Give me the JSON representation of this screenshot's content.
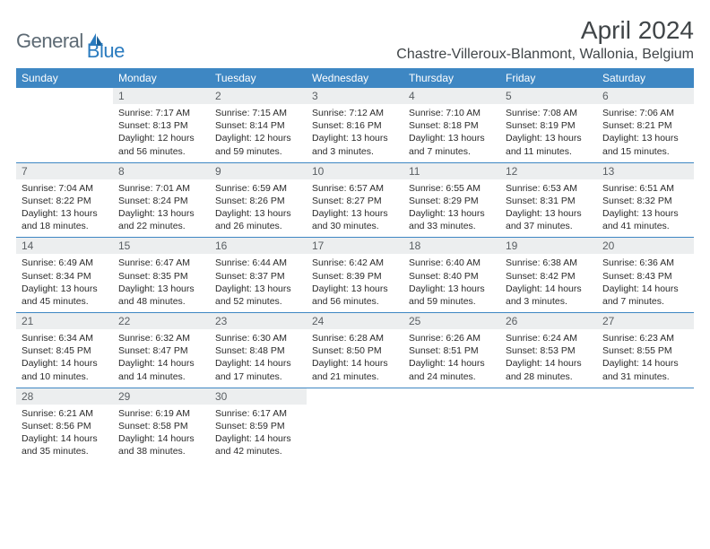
{
  "logo": {
    "text1": "General",
    "text2": "Blue"
  },
  "title": "April 2024",
  "location": "Chastre-Villeroux-Blanmont, Wallonia, Belgium",
  "colors": {
    "header_bg": "#3e87c3",
    "header_fg": "#ffffff",
    "daynum_bg": "#eceeef",
    "daynum_fg": "#5a5f63",
    "text": "#2b2b2b",
    "rule": "#3e87c3",
    "logo_gray": "#5d6a74",
    "logo_blue": "#2a7bbf"
  },
  "weekdays": [
    "Sunday",
    "Monday",
    "Tuesday",
    "Wednesday",
    "Thursday",
    "Friday",
    "Saturday"
  ],
  "grid": [
    [
      {
        "n": "",
        "sr": "",
        "ss": "",
        "dl": ""
      },
      {
        "n": "1",
        "sr": "Sunrise: 7:17 AM",
        "ss": "Sunset: 8:13 PM",
        "dl": "Daylight: 12 hours and 56 minutes."
      },
      {
        "n": "2",
        "sr": "Sunrise: 7:15 AM",
        "ss": "Sunset: 8:14 PM",
        "dl": "Daylight: 12 hours and 59 minutes."
      },
      {
        "n": "3",
        "sr": "Sunrise: 7:12 AM",
        "ss": "Sunset: 8:16 PM",
        "dl": "Daylight: 13 hours and 3 minutes."
      },
      {
        "n": "4",
        "sr": "Sunrise: 7:10 AM",
        "ss": "Sunset: 8:18 PM",
        "dl": "Daylight: 13 hours and 7 minutes."
      },
      {
        "n": "5",
        "sr": "Sunrise: 7:08 AM",
        "ss": "Sunset: 8:19 PM",
        "dl": "Daylight: 13 hours and 11 minutes."
      },
      {
        "n": "6",
        "sr": "Sunrise: 7:06 AM",
        "ss": "Sunset: 8:21 PM",
        "dl": "Daylight: 13 hours and 15 minutes."
      }
    ],
    [
      {
        "n": "7",
        "sr": "Sunrise: 7:04 AM",
        "ss": "Sunset: 8:22 PM",
        "dl": "Daylight: 13 hours and 18 minutes."
      },
      {
        "n": "8",
        "sr": "Sunrise: 7:01 AM",
        "ss": "Sunset: 8:24 PM",
        "dl": "Daylight: 13 hours and 22 minutes."
      },
      {
        "n": "9",
        "sr": "Sunrise: 6:59 AM",
        "ss": "Sunset: 8:26 PM",
        "dl": "Daylight: 13 hours and 26 minutes."
      },
      {
        "n": "10",
        "sr": "Sunrise: 6:57 AM",
        "ss": "Sunset: 8:27 PM",
        "dl": "Daylight: 13 hours and 30 minutes."
      },
      {
        "n": "11",
        "sr": "Sunrise: 6:55 AM",
        "ss": "Sunset: 8:29 PM",
        "dl": "Daylight: 13 hours and 33 minutes."
      },
      {
        "n": "12",
        "sr": "Sunrise: 6:53 AM",
        "ss": "Sunset: 8:31 PM",
        "dl": "Daylight: 13 hours and 37 minutes."
      },
      {
        "n": "13",
        "sr": "Sunrise: 6:51 AM",
        "ss": "Sunset: 8:32 PM",
        "dl": "Daylight: 13 hours and 41 minutes."
      }
    ],
    [
      {
        "n": "14",
        "sr": "Sunrise: 6:49 AM",
        "ss": "Sunset: 8:34 PM",
        "dl": "Daylight: 13 hours and 45 minutes."
      },
      {
        "n": "15",
        "sr": "Sunrise: 6:47 AM",
        "ss": "Sunset: 8:35 PM",
        "dl": "Daylight: 13 hours and 48 minutes."
      },
      {
        "n": "16",
        "sr": "Sunrise: 6:44 AM",
        "ss": "Sunset: 8:37 PM",
        "dl": "Daylight: 13 hours and 52 minutes."
      },
      {
        "n": "17",
        "sr": "Sunrise: 6:42 AM",
        "ss": "Sunset: 8:39 PM",
        "dl": "Daylight: 13 hours and 56 minutes."
      },
      {
        "n": "18",
        "sr": "Sunrise: 6:40 AM",
        "ss": "Sunset: 8:40 PM",
        "dl": "Daylight: 13 hours and 59 minutes."
      },
      {
        "n": "19",
        "sr": "Sunrise: 6:38 AM",
        "ss": "Sunset: 8:42 PM",
        "dl": "Daylight: 14 hours and 3 minutes."
      },
      {
        "n": "20",
        "sr": "Sunrise: 6:36 AM",
        "ss": "Sunset: 8:43 PM",
        "dl": "Daylight: 14 hours and 7 minutes."
      }
    ],
    [
      {
        "n": "21",
        "sr": "Sunrise: 6:34 AM",
        "ss": "Sunset: 8:45 PM",
        "dl": "Daylight: 14 hours and 10 minutes."
      },
      {
        "n": "22",
        "sr": "Sunrise: 6:32 AM",
        "ss": "Sunset: 8:47 PM",
        "dl": "Daylight: 14 hours and 14 minutes."
      },
      {
        "n": "23",
        "sr": "Sunrise: 6:30 AM",
        "ss": "Sunset: 8:48 PM",
        "dl": "Daylight: 14 hours and 17 minutes."
      },
      {
        "n": "24",
        "sr": "Sunrise: 6:28 AM",
        "ss": "Sunset: 8:50 PM",
        "dl": "Daylight: 14 hours and 21 minutes."
      },
      {
        "n": "25",
        "sr": "Sunrise: 6:26 AM",
        "ss": "Sunset: 8:51 PM",
        "dl": "Daylight: 14 hours and 24 minutes."
      },
      {
        "n": "26",
        "sr": "Sunrise: 6:24 AM",
        "ss": "Sunset: 8:53 PM",
        "dl": "Daylight: 14 hours and 28 minutes."
      },
      {
        "n": "27",
        "sr": "Sunrise: 6:23 AM",
        "ss": "Sunset: 8:55 PM",
        "dl": "Daylight: 14 hours and 31 minutes."
      }
    ],
    [
      {
        "n": "28",
        "sr": "Sunrise: 6:21 AM",
        "ss": "Sunset: 8:56 PM",
        "dl": "Daylight: 14 hours and 35 minutes."
      },
      {
        "n": "29",
        "sr": "Sunrise: 6:19 AM",
        "ss": "Sunset: 8:58 PM",
        "dl": "Daylight: 14 hours and 38 minutes."
      },
      {
        "n": "30",
        "sr": "Sunrise: 6:17 AM",
        "ss": "Sunset: 8:59 PM",
        "dl": "Daylight: 14 hours and 42 minutes."
      },
      {
        "n": "",
        "sr": "",
        "ss": "",
        "dl": ""
      },
      {
        "n": "",
        "sr": "",
        "ss": "",
        "dl": ""
      },
      {
        "n": "",
        "sr": "",
        "ss": "",
        "dl": ""
      },
      {
        "n": "",
        "sr": "",
        "ss": "",
        "dl": ""
      }
    ]
  ]
}
